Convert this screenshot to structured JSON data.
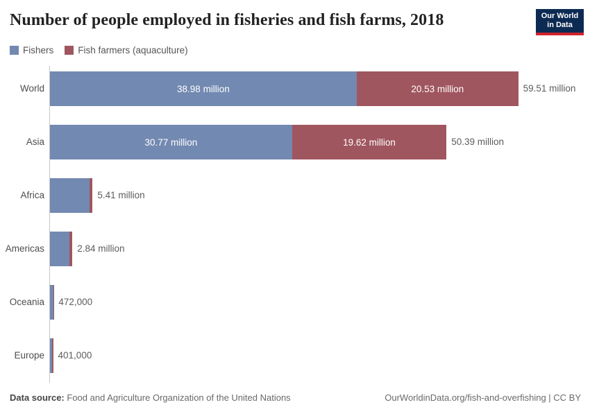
{
  "header": {
    "title": "Number of people employed in fisheries and fish farms, 2018",
    "logo": {
      "line1": "Our World",
      "line2": "in Data",
      "bg_color": "#0d2b52",
      "accent_color": "#d0232e"
    }
  },
  "legend": {
    "items": [
      {
        "label": "Fishers",
        "color": "#7289b1"
      },
      {
        "label": "Fish farmers (aquaculture)",
        "color": "#a0565f"
      }
    ]
  },
  "chart_data": {
    "type": "bar",
    "orientation": "horizontal",
    "stacked": true,
    "title": "Number of people employed in fisheries and fish farms, 2018",
    "unit": "people (millions)",
    "categories": [
      "World",
      "Asia",
      "Africa",
      "Americas",
      "Oceania",
      "Europe"
    ],
    "series": [
      {
        "name": "Fishers",
        "color": "#7289b1",
        "values": [
          38.98,
          30.77,
          5.02,
          2.46,
          0.46,
          0.272
        ]
      },
      {
        "name": "Fish farmers (aquaculture)",
        "color": "#a0565f",
        "values": [
          20.53,
          19.62,
          0.39,
          0.38,
          0.012,
          0.129
        ]
      }
    ],
    "totals": [
      59.51,
      50.39,
      5.41,
      2.84,
      0.472,
      0.401
    ],
    "total_labels": [
      "59.51 million",
      "50.39 million",
      "5.41 million",
      "2.84 million",
      "472,000",
      "401,000"
    ],
    "segment_labels": [
      [
        "38.98 million",
        "20.53 million"
      ],
      [
        "30.77 million",
        "19.62 million"
      ],
      [
        "",
        ""
      ],
      [
        "",
        ""
      ],
      [
        "",
        ""
      ],
      [
        "",
        ""
      ]
    ],
    "xmax": 59.51,
    "grid": false,
    "legend_position": "top"
  },
  "footer": {
    "source_label": "Data source:",
    "source_text": "Food and Agriculture Organization of the United Nations",
    "credit": "OurWorldinData.org/fish-and-overfishing | CC BY"
  }
}
